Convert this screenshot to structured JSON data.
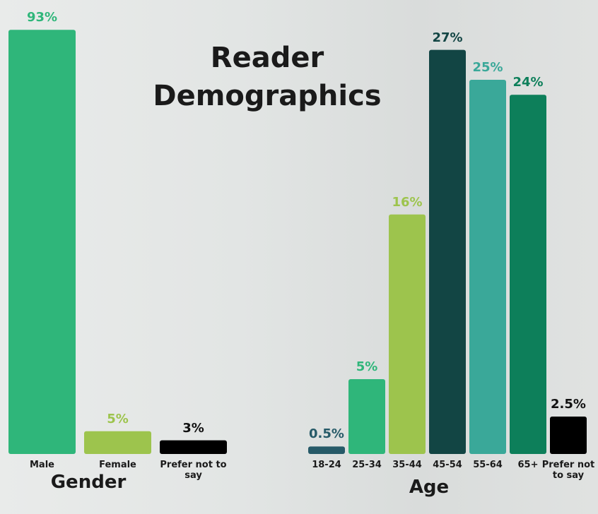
{
  "title": "Reader Demographics",
  "chart_data": [
    {
      "type": "bar",
      "title": "Gender",
      "categories": [
        "Male",
        "Female",
        "Prefer not to say"
      ],
      "values": [
        93,
        5,
        3
      ],
      "value_labels": [
        "93%",
        "5%",
        "3%"
      ],
      "colors": [
        "#2fb67a",
        "#9dc44d",
        "#000000"
      ]
    },
    {
      "type": "bar",
      "title": "Age",
      "categories": [
        "18-24",
        "25-34",
        "35-44",
        "45-54",
        "55-64",
        "65+",
        "Prefer not to say"
      ],
      "values": [
        0.5,
        5,
        16,
        27,
        25,
        24,
        2.5
      ],
      "value_labels": [
        "0.5%",
        "5%",
        "16%",
        "27%",
        "25%",
        "24%",
        "2.5%"
      ],
      "colors": [
        "#265a68",
        "#2fb67a",
        "#9dc44d",
        "#124544",
        "#3aa899",
        "#0d7f5a",
        "#000000"
      ]
    }
  ]
}
